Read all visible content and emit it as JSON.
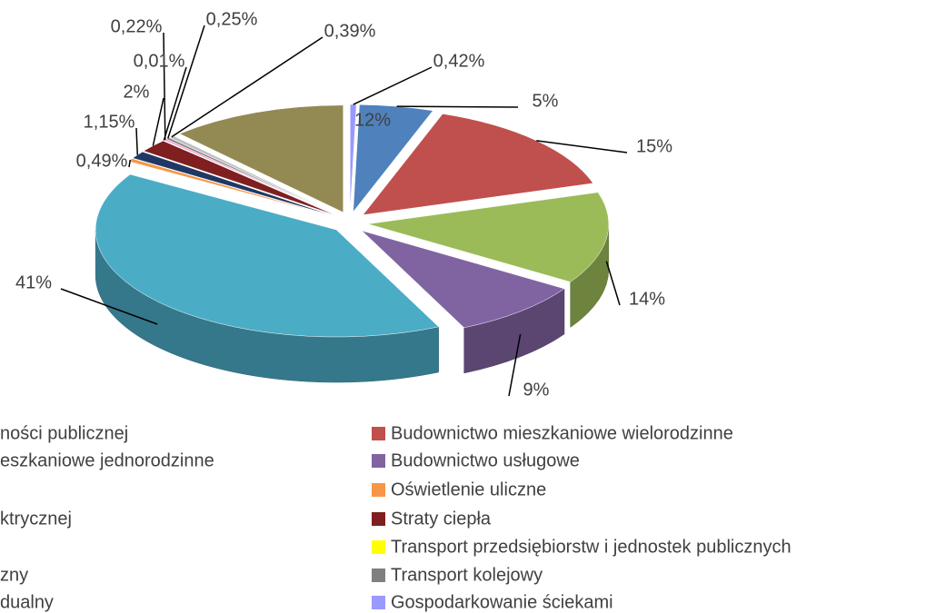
{
  "chart_data": {
    "type": "pie",
    "values": [
      0.42,
      5,
      15,
      14,
      9,
      41,
      0.49,
      1.15,
      2,
      0.01,
      0.22,
      0.25,
      0.39,
      12
    ],
    "value_labels": [
      "0,42%",
      "5%",
      "15%",
      "14%",
      "9%",
      "41%",
      "0,49%",
      "1,15%",
      "2%",
      "0,01%",
      "0,22%",
      "0,25%",
      "0,39%",
      "12%"
    ],
    "colors": [
      "#9999ff",
      "#4f81bd",
      "#c0504d",
      "#9bbb59",
      "#8064a2",
      "#4bacc6",
      "#f79646",
      "#1f3864",
      "#7f1f1f",
      "#ffff00",
      "#ff99cc",
      "#7f7f7f",
      "#c0c0c0",
      "#938953"
    ],
    "legend": [
      {
        "label": "Budownictwo mieszkaniowe wielorodzinne",
        "color": "#c0504d"
      },
      {
        "label": "Budownictwo usługowe",
        "color": "#8064a2"
      },
      {
        "label": "Oświetlenie uliczne",
        "color": "#f79646"
      },
      {
        "label": "Straty ciepła",
        "color": "#7f1f1f"
      },
      {
        "label": "Transport przedsiębiorstw i jednostek publicznych",
        "color": "#ffff00"
      },
      {
        "label": "Transport kolejowy",
        "color": "#7f7f7f"
      },
      {
        "label": "Gospodarkowanie ściekami",
        "color": "#9999ff"
      }
    ],
    "legend_cropped": [
      "ności publicznej",
      "eszkaniowe jednorodzinne",
      "ktrycznej",
      "zny",
      "dualny"
    ]
  }
}
